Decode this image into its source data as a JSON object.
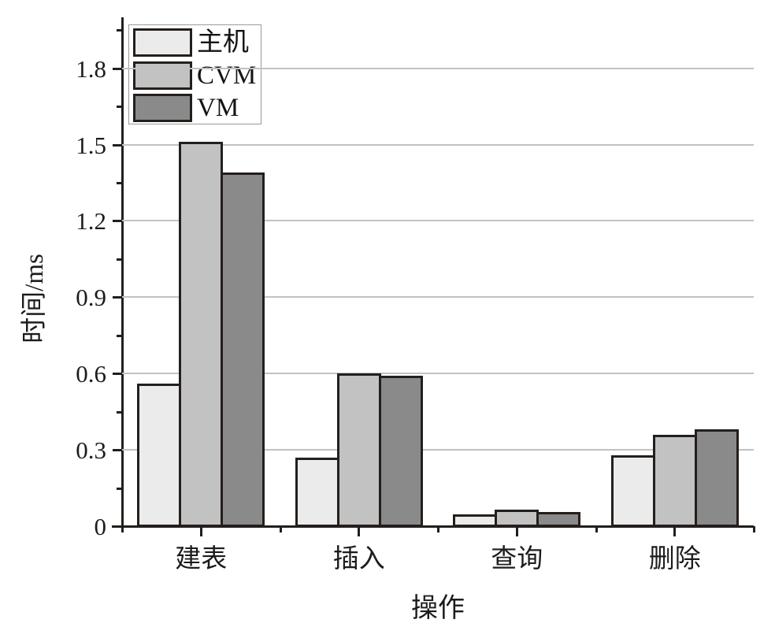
{
  "chart_data": {
    "type": "bar",
    "title": "",
    "categories": [
      "建表",
      "插入",
      "查询",
      "删除"
    ],
    "series": [
      {
        "name": "主机",
        "color": "#ebebeb",
        "values": [
          0.56,
          0.27,
          0.045,
          0.28
        ]
      },
      {
        "name": "CVM",
        "color": "#c2c2c2",
        "values": [
          1.51,
          0.6,
          0.065,
          0.36
        ]
      },
      {
        "name": "VM",
        "color": "#8a8a8a",
        "values": [
          1.39,
          0.59,
          0.055,
          0.38
        ]
      }
    ],
    "xlabel": "操作",
    "ylabel": "时间/ms",
    "ylim": [
      0,
      2.0
    ],
    "y_major_ticks": [
      0,
      0.3,
      0.6,
      0.9,
      1.2,
      1.5,
      1.8
    ],
    "y_tick_labels": [
      "0",
      "0.3",
      "0.6",
      "0.9",
      "1.2",
      "1.5",
      "1.8"
    ],
    "y_minor_step": 0.15,
    "grid": true,
    "gridline_color": "#c2c2c2",
    "axis_color": "#221e1b",
    "bar_border_color": "#241f1c",
    "legend_position": "top-left",
    "background": "#ffffff"
  }
}
